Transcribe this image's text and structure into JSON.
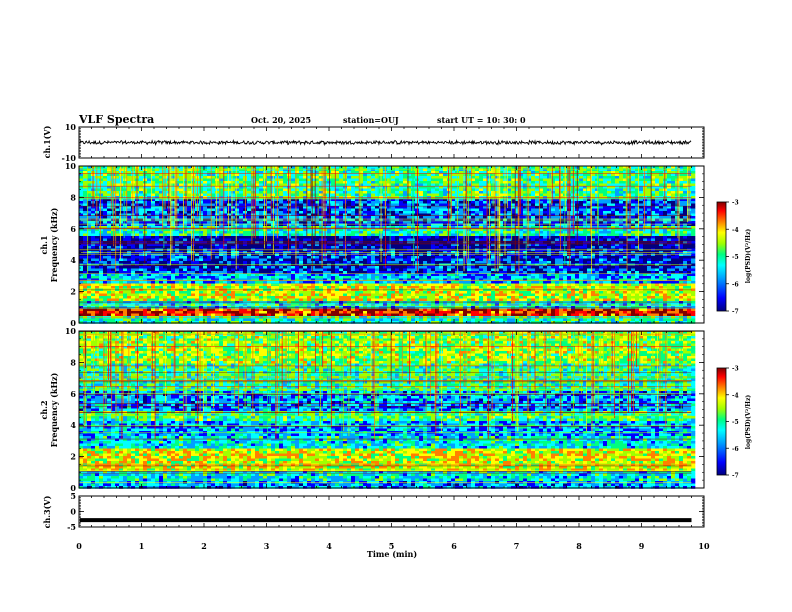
{
  "header": {
    "title": "VLF Spectra",
    "date": "Oct. 20, 2025",
    "station": "station=OUJ",
    "start": "start  UT =   10: 30: 0"
  },
  "chart_data": [
    {
      "type": "line",
      "panel": "ch1-waveform",
      "ylabel": "ch.1(V)",
      "ylim": [
        -10,
        10
      ],
      "yticks": [
        "10",
        "-10"
      ],
      "xlim": [
        0,
        10
      ],
      "note_level_v": 0,
      "amplitude_v": 1,
      "data_extent_min": 9.8
    },
    {
      "type": "heatmap",
      "panel": "ch1-spectrogram",
      "ylabel_line1": "ch.1",
      "ylabel_line2": "Frequency (kHz)",
      "ylim": [
        0,
        10
      ],
      "yticks": [
        "0",
        "2",
        "4",
        "6",
        "8",
        "10"
      ],
      "xlim": [
        0,
        10
      ],
      "colorbar": {
        "label": "log(PSD)(V²/Hz)",
        "range": [
          -7,
          -3
        ],
        "ticks": [
          "-3",
          "-4",
          "-5",
          "-6",
          "-7"
        ]
      },
      "bands_khz": [
        {
          "from": 0.0,
          "to": 0.5,
          "level": -5.4
        },
        {
          "from": 0.5,
          "to": 1.0,
          "level": -3.6
        },
        {
          "from": 1.0,
          "to": 1.5,
          "level": -5.6
        },
        {
          "from": 1.5,
          "to": 2.6,
          "level": -4.6
        },
        {
          "from": 2.6,
          "to": 3.2,
          "level": -5.9
        },
        {
          "from": 3.2,
          "to": 4.6,
          "level": -6.4
        },
        {
          "from": 4.6,
          "to": 5.6,
          "level": -6.7
        },
        {
          "from": 5.6,
          "to": 6.2,
          "level": -5.4
        },
        {
          "from": 6.2,
          "to": 8.0,
          "level": -6.2
        },
        {
          "from": 8.0,
          "to": 10.0,
          "level": -5.2
        }
      ]
    },
    {
      "type": "heatmap",
      "panel": "ch2-spectrogram",
      "ylabel_line1": "ch.2",
      "ylabel_line2": "Frequency (kHz)",
      "ylim": [
        0,
        10
      ],
      "yticks": [
        "0",
        "2",
        "4",
        "6",
        "8",
        "10"
      ],
      "xlim": [
        0,
        10
      ],
      "colorbar": {
        "label": "log(PSD)(V²/Hz)",
        "range": [
          -7,
          -3
        ],
        "ticks": [
          "-3",
          "-4",
          "-5",
          "-6",
          "-7"
        ]
      },
      "bands_khz": [
        {
          "from": 0.0,
          "to": 0.6,
          "level": -6.0
        },
        {
          "from": 0.6,
          "to": 1.2,
          "level": -5.6
        },
        {
          "from": 1.2,
          "to": 2.6,
          "level": -4.5
        },
        {
          "from": 2.6,
          "to": 3.4,
          "level": -5.6
        },
        {
          "from": 3.4,
          "to": 4.4,
          "level": -5.9
        },
        {
          "from": 4.4,
          "to": 5.0,
          "level": -5.2
        },
        {
          "from": 5.0,
          "to": 6.2,
          "level": -6.0
        },
        {
          "from": 6.2,
          "to": 8.0,
          "level": -5.3
        },
        {
          "from": 8.0,
          "to": 10.0,
          "level": -4.8
        }
      ]
    },
    {
      "type": "line",
      "panel": "ch3-waveform",
      "ylabel": "ch.3(V)",
      "ylim": [
        -5,
        5
      ],
      "yticks": [
        "5",
        "0",
        "-5"
      ],
      "xlim": [
        0,
        10
      ],
      "level_v": -2.8,
      "data_extent_min": 9.8
    }
  ],
  "xaxis": {
    "label": "Time (min)",
    "ticks": [
      "0",
      "1",
      "2",
      "3",
      "4",
      "5",
      "6",
      "7",
      "8",
      "9",
      "10"
    ],
    "range": [
      0,
      10
    ]
  },
  "colors": {
    "colormap": [
      "#000080",
      "#0000ff",
      "#00a0ff",
      "#00ffff",
      "#00ff80",
      "#a0ff00",
      "#ffff00",
      "#ff8000",
      "#ff0000",
      "#800000"
    ]
  }
}
